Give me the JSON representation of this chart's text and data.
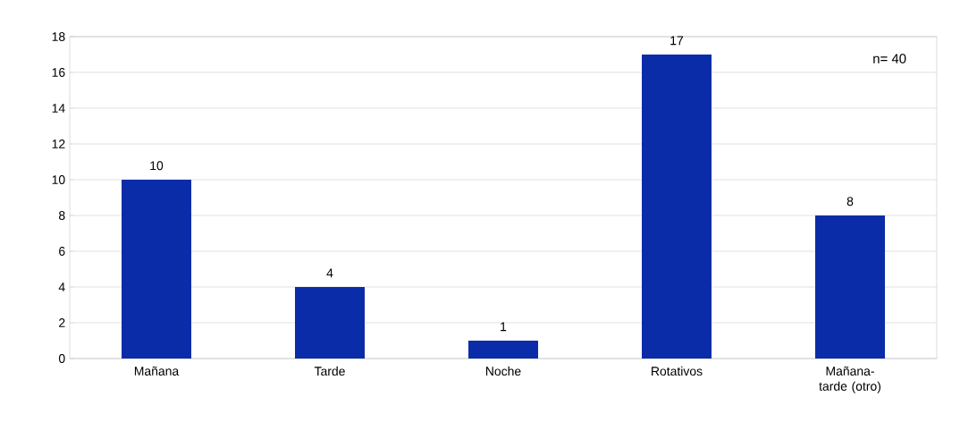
{
  "chart_data": {
    "type": "bar",
    "categories": [
      "Mañana",
      "Tarde",
      "Noche",
      "Rotativos",
      "Mañana-tarde (otro)"
    ],
    "values": [
      10,
      4,
      1,
      17,
      8
    ],
    "color": "#0b2ca8",
    "ylim": [
      0,
      18
    ],
    "yticks": [
      0,
      2,
      4,
      6,
      8,
      10,
      12,
      14,
      16,
      18
    ],
    "grid": "y",
    "data_labels": true,
    "annotations": [
      "n= 40"
    ]
  }
}
